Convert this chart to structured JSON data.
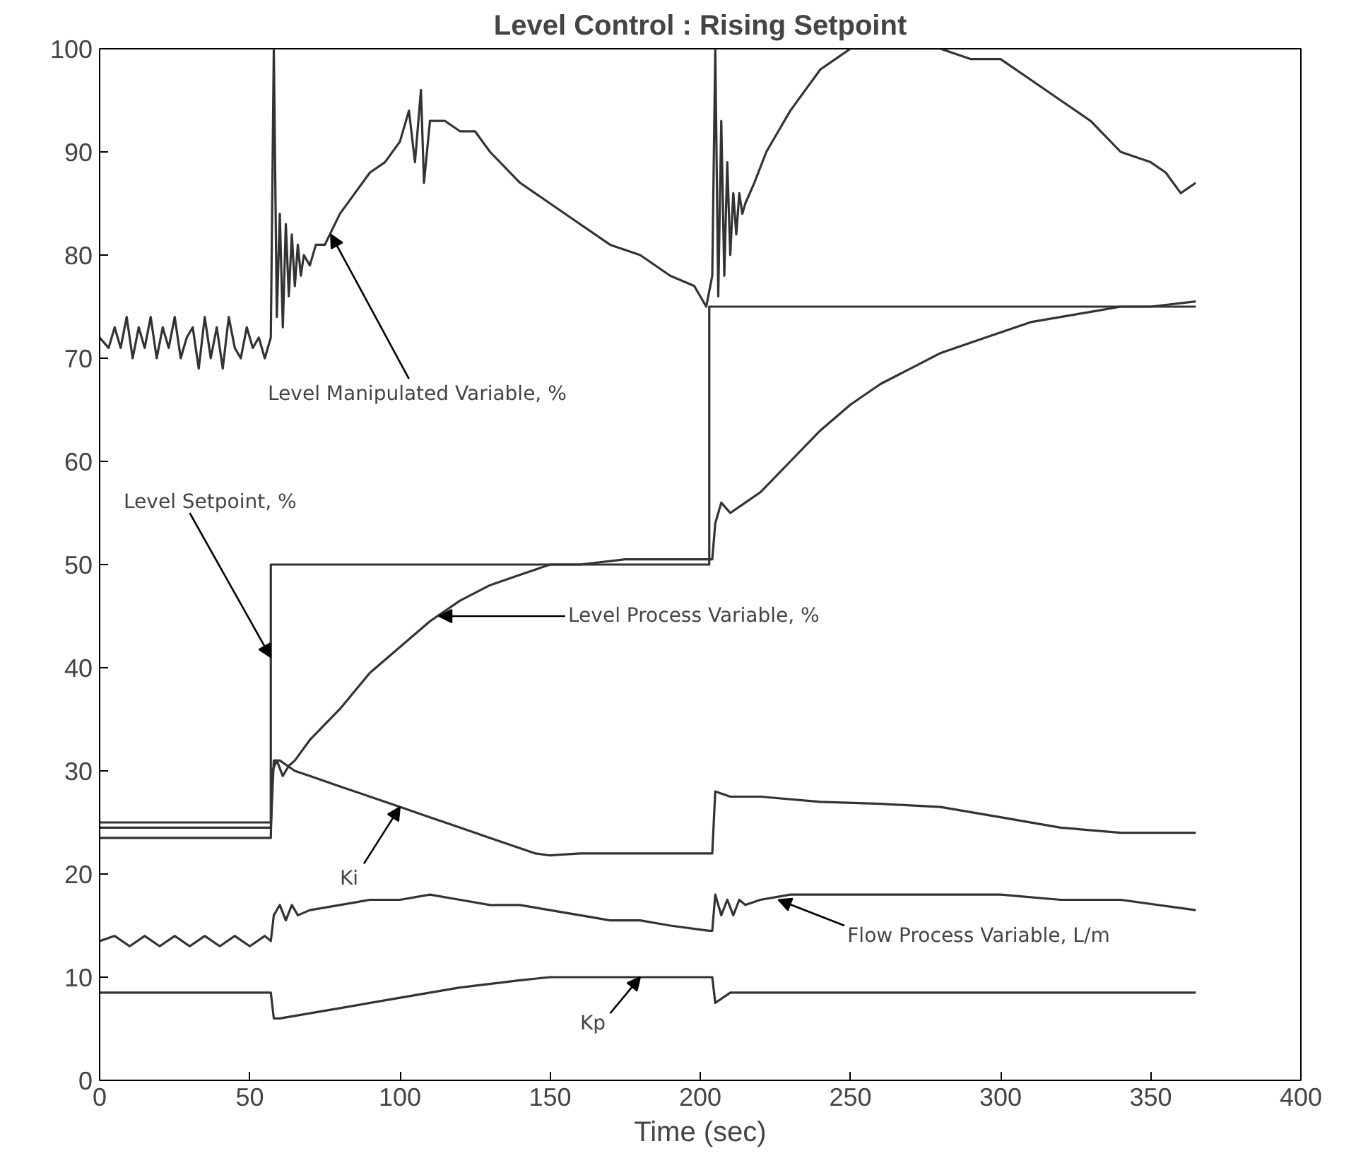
{
  "chart_data": {
    "type": "line",
    "title": "Level Control : Rising Setpoint",
    "xlabel": "Time (sec)",
    "xlim": [
      0,
      400
    ],
    "ylim": [
      0,
      100
    ],
    "xticks": [
      0,
      50,
      100,
      150,
      200,
      250,
      300,
      350,
      400
    ],
    "yticks": [
      0,
      10,
      20,
      30,
      40,
      50,
      60,
      70,
      80,
      90,
      100
    ],
    "grid": false,
    "marker": "none",
    "line_style": "solid",
    "series": [
      {
        "color": "#333333",
        "x": [
          0,
          3,
          5,
          7,
          9,
          11,
          13,
          15,
          17,
          19,
          21,
          23,
          25,
          27,
          29,
          31,
          33,
          35,
          37,
          39,
          41,
          43,
          45,
          47,
          49,
          51,
          53,
          55,
          57,
          58,
          59,
          60,
          61,
          62,
          63,
          64,
          65,
          66,
          67,
          68,
          70,
          72,
          75,
          80,
          85,
          90,
          95,
          100,
          103,
          105,
          107,
          108,
          110,
          115,
          120,
          125,
          130,
          140,
          150,
          160,
          170,
          180,
          190,
          198,
          202,
          204,
          205,
          206,
          207,
          208,
          209,
          210,
          211,
          212,
          213,
          214,
          215,
          218,
          222,
          226,
          230,
          235,
          240,
          245,
          250,
          255,
          260,
          265,
          270,
          280,
          290,
          300,
          310,
          320,
          330,
          340,
          350,
          355,
          360,
          365
        ],
        "values": [
          72,
          71,
          73,
          71,
          74,
          70,
          73,
          71,
          74,
          70,
          73,
          71,
          74,
          70,
          72,
          73,
          69,
          74,
          70,
          73,
          69,
          74,
          71,
          70,
          73,
          71,
          72,
          70,
          72,
          100,
          74,
          84,
          73,
          83,
          76,
          82,
          77,
          81,
          78,
          80,
          79,
          81,
          81,
          84,
          86,
          88,
          89,
          91,
          94,
          89,
          96,
          87,
          93,
          93,
          92,
          92,
          90,
          87,
          85,
          83,
          81,
          80,
          78,
          77,
          75,
          78,
          100,
          76,
          93,
          78,
          89,
          80,
          86,
          82,
          86,
          84,
          85,
          87,
          90,
          92,
          94,
          96,
          98,
          99,
          100,
          100,
          100,
          100,
          100,
          100,
          99,
          99,
          97,
          95,
          93,
          90,
          89,
          88,
          86,
          87
        ]
      },
      {
        "color": "#333333",
        "x": [
          0,
          57,
          57,
          203,
          203,
          365
        ],
        "values": [
          25,
          25,
          50,
          50,
          75,
          75
        ]
      },
      {
        "color": "#333333",
        "x": [
          0,
          57,
          57.5,
          59,
          61,
          63,
          65,
          70,
          80,
          90,
          100,
          110,
          120,
          130,
          140,
          150,
          160,
          175,
          190,
          203,
          204,
          205,
          207,
          210,
          215,
          220,
          230,
          240,
          250,
          260,
          270,
          280,
          290,
          300,
          310,
          320,
          330,
          340,
          350,
          365
        ],
        "values": [
          23.5,
          23.5,
          30,
          31,
          29.5,
          30.5,
          31,
          33,
          36,
          39.5,
          42,
          44.5,
          46.5,
          48,
          49,
          50,
          50,
          50.5,
          50.5,
          50.5,
          50.5,
          54,
          56,
          55,
          56,
          57,
          60,
          63,
          65.5,
          67.5,
          69,
          70.5,
          71.5,
          72.5,
          73.5,
          74,
          74.5,
          75,
          75,
          75.5
        ]
      },
      {
        "color": "#333333",
        "x": [
          0,
          57,
          58,
          60,
          65,
          70,
          80,
          90,
          100,
          110,
          120,
          130,
          140,
          145,
          150,
          160,
          170,
          180,
          190,
          203,
          204,
          205,
          210,
          220,
          240,
          260,
          280,
          300,
          320,
          340,
          365
        ],
        "values": [
          24.5,
          24.5,
          31,
          31,
          30,
          29.5,
          28.5,
          27.5,
          26.5,
          25.5,
          24.5,
          23.5,
          22.5,
          22,
          21.8,
          22,
          22,
          22,
          22,
          22,
          22,
          28,
          27.5,
          27.5,
          27,
          26.8,
          26.5,
          25.5,
          24.5,
          24,
          24
        ]
      },
      {
        "color": "#333333",
        "x": [
          0,
          5,
          10,
          15,
          20,
          25,
          30,
          35,
          40,
          45,
          50,
          55,
          57,
          58,
          60,
          62,
          64,
          66,
          70,
          80,
          90,
          100,
          110,
          120,
          130,
          140,
          150,
          160,
          170,
          180,
          190,
          203,
          204,
          205,
          207,
          209,
          211,
          213,
          215,
          220,
          230,
          250,
          270,
          300,
          320,
          340,
          365
        ],
        "values": [
          13.5,
          14,
          13,
          14,
          13,
          14,
          13,
          14,
          13,
          14,
          13,
          14,
          13.5,
          16,
          17,
          15.5,
          17,
          16,
          16.5,
          17,
          17.5,
          17.5,
          18,
          17.5,
          17,
          17,
          16.5,
          16,
          15.5,
          15.5,
          15,
          14.5,
          14.5,
          18,
          16,
          17.5,
          16,
          17.5,
          17,
          17.5,
          18,
          18,
          18,
          18,
          17.5,
          17.5,
          16.5
        ]
      },
      {
        "color": "#333333",
        "x": [
          0,
          57,
          58,
          60,
          80,
          100,
          120,
          140,
          150,
          160,
          180,
          203,
          204,
          205,
          210,
          365
        ],
        "values": [
          8.5,
          8.5,
          6,
          6,
          7,
          8,
          9,
          9.7,
          10,
          10,
          10,
          10,
          10,
          7.5,
          8.5,
          8.5
        ]
      }
    ],
    "annotations": [
      {
        "text": "Level Manipulated Variable, %",
        "x": 77,
        "y": 82
      },
      {
        "text": "Level Setpoint, %",
        "x": 57,
        "y": 41
      },
      {
        "text": "Level Process Variable, %",
        "x": 113,
        "y": 45
      },
      {
        "text": "Ki",
        "x": 100,
        "y": 26.5
      },
      {
        "text": "Flow Process Variable, L/m",
        "x": 226,
        "y": 17.5
      },
      {
        "text": "Kp",
        "x": 180,
        "y": 10
      }
    ]
  }
}
